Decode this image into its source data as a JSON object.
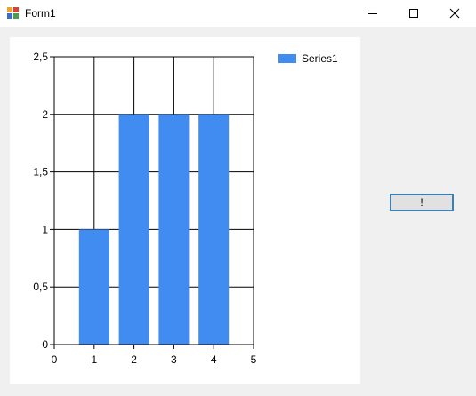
{
  "window": {
    "title": "Form1",
    "icon": "winforms-app-icon",
    "controls": [
      "minimize-icon",
      "maximize-icon",
      "close-icon"
    ]
  },
  "chart_data": {
    "type": "bar",
    "x": [
      1,
      2,
      3,
      4
    ],
    "series": [
      {
        "name": "Series1",
        "values": [
          1,
          2,
          2,
          2
        ],
        "color": "#418cf0"
      }
    ],
    "xlim": [
      0,
      5
    ],
    "ylim": [
      0,
      2.5
    ],
    "xticks": [
      "0",
      "1",
      "2",
      "3",
      "4",
      "5"
    ],
    "yticks": [
      "0",
      "0,5",
      "1",
      "1,5",
      "2",
      "2,5"
    ],
    "grid": true,
    "legend": "top-right",
    "title": "",
    "xlabel": "",
    "ylabel": ""
  },
  "button": {
    "label": "!"
  }
}
